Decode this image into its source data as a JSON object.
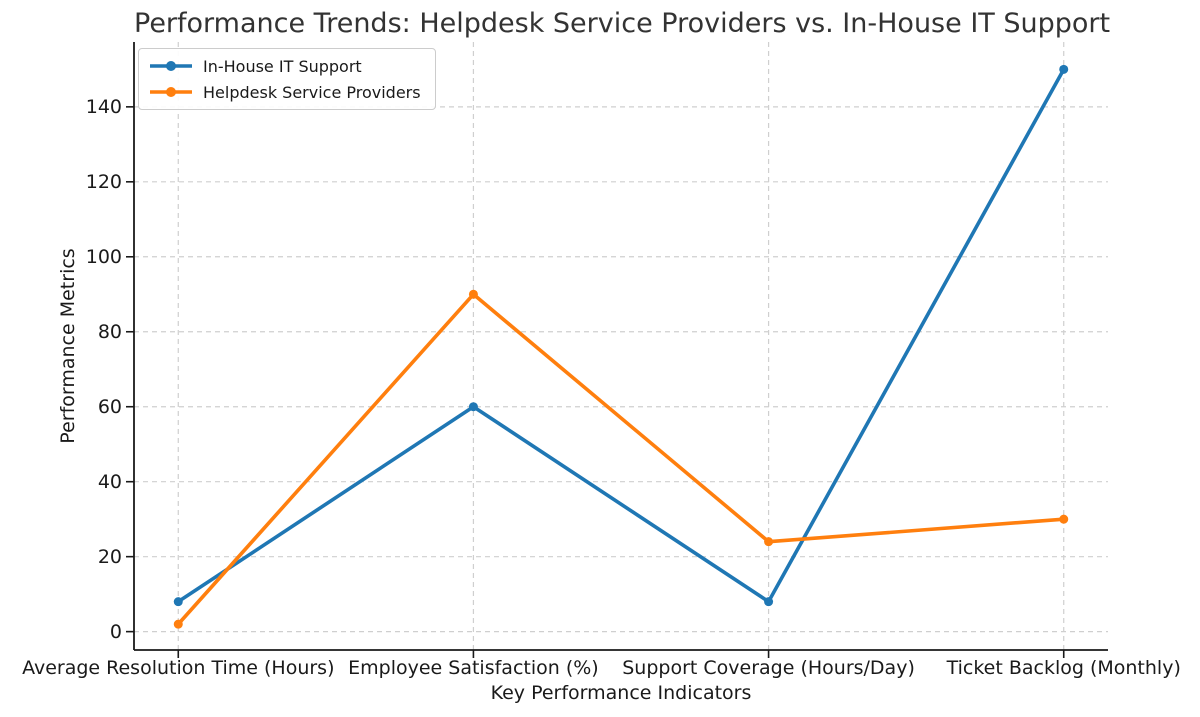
{
  "chart_data": {
    "type": "line",
    "title": "Performance Trends: Helpdesk Service Providers vs. In-House IT Support",
    "xlabel": "Key Performance Indicators",
    "ylabel": "Performance Metrics",
    "categories": [
      "Average Resolution Time (Hours)",
      "Employee Satisfaction (%)",
      "Support Coverage (Hours/Day)",
      "Ticket Backlog (Monthly)"
    ],
    "series": [
      {
        "name": "In-House IT Support",
        "color": "#1f77b4",
        "values": [
          8,
          60,
          8,
          150
        ]
      },
      {
        "name": "Helpdesk Service Providers",
        "color": "#ff7f0e",
        "values": [
          2,
          90,
          24,
          30
        ]
      }
    ],
    "yticks": [
      0,
      20,
      40,
      60,
      80,
      100,
      120,
      140
    ],
    "ylim": [
      -4.9,
      157.3
    ],
    "xlim": [
      -0.15,
      3.15
    ],
    "grid": true,
    "grid_style": "dashed",
    "grid_color": "#cfcfcf",
    "spine_color": "#1a1a1a",
    "legend_position": "upper left",
    "marker": "circle"
  }
}
